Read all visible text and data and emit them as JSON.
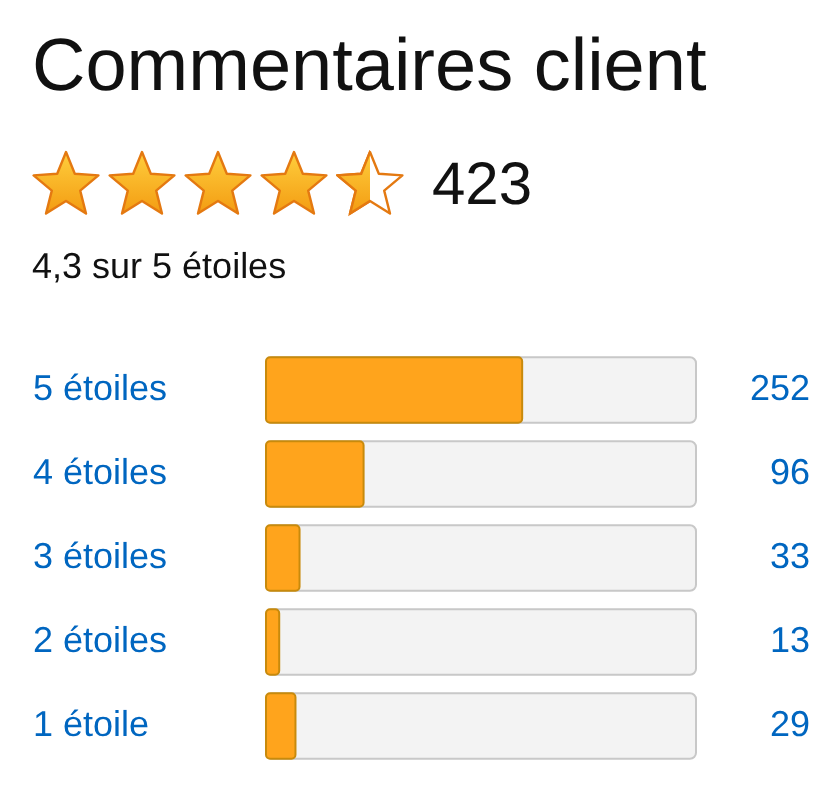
{
  "chart_data": {
    "type": "bar",
    "orientation": "horizontal",
    "title": "Commentaires client",
    "subtitle": "4,3 sur 5 étoiles",
    "annotations": [
      "423"
    ],
    "categories": [
      "5 étoiles",
      "4 étoiles",
      "3 étoiles",
      "2 étoiles",
      "1 étoile"
    ],
    "values": [
      252,
      96,
      33,
      13,
      29
    ],
    "color": "#ffa41c",
    "xlim": [
      0,
      423
    ],
    "tick_labels": false,
    "data_labels": true
  }
}
